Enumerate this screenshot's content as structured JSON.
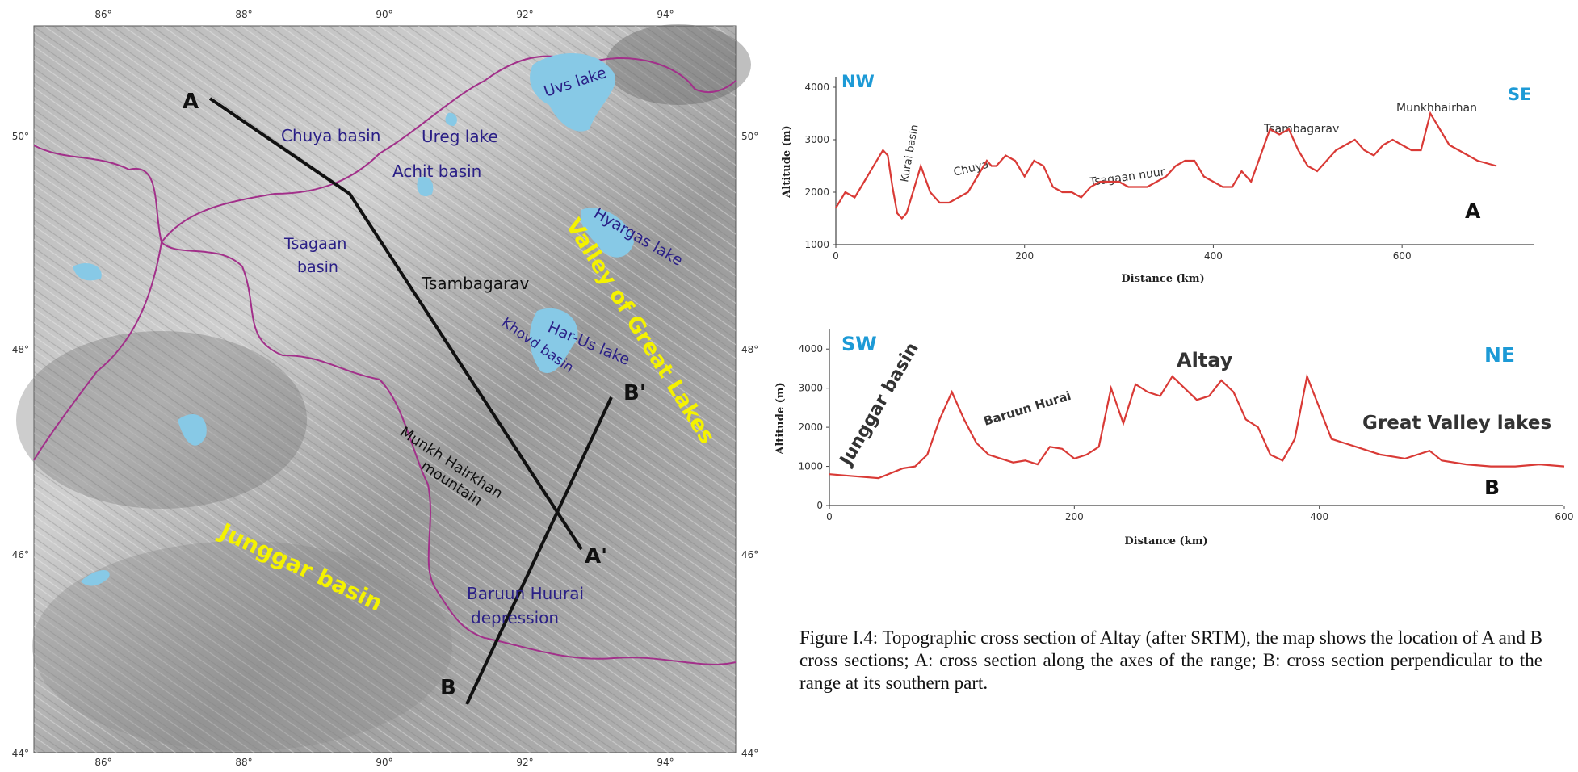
{
  "map": {
    "lon_ticks": [
      "86°",
      "88°",
      "90°",
      "92°",
      "94°"
    ],
    "lat_ticks": [
      "50°",
      "48°",
      "46°",
      "44°"
    ],
    "lakes": [
      {
        "name": "Uvs lake"
      },
      {
        "name": "Ureg lake"
      },
      {
        "name": "Hyargas lake"
      },
      {
        "name": "Har-Us lake"
      }
    ],
    "basins": [
      {
        "name": "Chuya basin"
      },
      {
        "name": "Achit basin"
      },
      {
        "name": "Khovd basin"
      }
    ],
    "tsagaan_basin": [
      "Tsagaan",
      "basin"
    ],
    "tsambagarav": "Tsambagarav",
    "munkh_hairkhan": [
      "Munkh Hairkhan",
      "mountain"
    ],
    "baruun_huurai": [
      "Baruun Huurai",
      "depression"
    ],
    "junggar_basin": "Junggar basin",
    "valley_great_lakes": "Valley of Great Lakes",
    "profile_points": {
      "a": "A",
      "a_prime": "A'",
      "b": "B",
      "b_prime": "B'"
    },
    "colors": {
      "lake": "#87c9e6",
      "border": "#a2308a",
      "profile_line": "#111111",
      "highlight": "#f4f200",
      "place": "#2a1f86"
    }
  },
  "profile_a": {
    "left_label": "NW",
    "right_label": "SE",
    "end_label": "A",
    "ylabel": "Altitude (m)",
    "xlabel": "Distance (km)",
    "yticks": [
      "1000",
      "2000",
      "3000",
      "4000"
    ],
    "xticks": [
      "0",
      "200",
      "400",
      "600"
    ],
    "annotations": [
      "Kurai basin",
      "Chuya",
      "Tsagaan nuur",
      "Tsambagarav",
      "Munkhhairhan"
    ]
  },
  "profile_b": {
    "left_label": "SW",
    "right_label": "NE",
    "end_label": "B",
    "ylabel": "Altitude (m)",
    "xlabel": "Distance (km)",
    "yticks": [
      "0",
      "1000",
      "2000",
      "3000",
      "4000"
    ],
    "xticks": [
      "0",
      "200",
      "400",
      "600"
    ],
    "annotations": [
      "Junggar basin",
      "Baruun Hurai",
      "Altay",
      "Great Valley lakes"
    ]
  },
  "chart_data": [
    {
      "type": "line",
      "xlabel": "Distance (km)",
      "ylabel": "Altitude (m)",
      "xlim": [
        0,
        700
      ],
      "ylim": [
        1000,
        4200
      ],
      "series": [
        {
          "x": [
            0,
            10,
            20,
            30,
            40,
            50,
            55,
            60,
            65,
            70,
            75,
            80,
            90,
            100,
            110,
            120,
            130,
            140,
            150,
            160,
            165,
            170,
            180,
            190,
            200,
            210,
            220,
            230,
            240,
            250,
            260,
            270,
            280,
            290,
            300,
            310,
            320,
            330,
            340,
            350,
            360,
            370,
            380,
            390,
            400,
            410,
            420,
            430,
            440,
            450,
            460,
            470,
            480,
            490,
            500,
            510,
            520,
            530,
            540,
            550,
            560,
            570,
            580,
            590,
            600,
            610,
            620,
            630,
            640,
            650,
            660,
            670,
            680,
            700
          ],
          "y": [
            1700,
            2000,
            1900,
            2200,
            2500,
            2800,
            2700,
            2100,
            1600,
            1500,
            1600,
            1900,
            2500,
            2000,
            1800,
            1800,
            1900,
            2000,
            2300,
            2600,
            2500,
            2500,
            2700,
            2600,
            2300,
            2600,
            2500,
            2100,
            2000,
            2000,
            1900,
            2100,
            2200,
            2200,
            2200,
            2100,
            2100,
            2100,
            2200,
            2300,
            2500,
            2600,
            2600,
            2300,
            2200,
            2100,
            2100,
            2400,
            2200,
            2700,
            3200,
            3100,
            3200,
            2800,
            2500,
            2400,
            2600,
            2800,
            2900,
            3000,
            2800,
            2700,
            2900,
            3000,
            2900,
            2800,
            2800,
            3500,
            3200,
            2900,
            2800,
            2700,
            2600,
            2500
          ]
        }
      ]
    },
    {
      "type": "line",
      "xlabel": "Distance (km)",
      "ylabel": "Altitude (m)",
      "xlim": [
        0,
        600
      ],
      "ylim": [
        0,
        4500
      ],
      "series": [
        {
          "x": [
            0,
            20,
            40,
            60,
            70,
            80,
            90,
            100,
            110,
            120,
            130,
            140,
            150,
            160,
            170,
            180,
            190,
            200,
            210,
            220,
            230,
            240,
            250,
            260,
            270,
            280,
            290,
            300,
            310,
            320,
            330,
            340,
            350,
            360,
            370,
            380,
            390,
            400,
            410,
            420,
            430,
            440,
            450,
            460,
            470,
            480,
            490,
            500,
            520,
            540,
            560,
            580,
            600
          ],
          "y": [
            800,
            750,
            700,
            950,
            1000,
            1300,
            2200,
            2900,
            2200,
            1600,
            1300,
            1200,
            1100,
            1150,
            1050,
            1500,
            1450,
            1200,
            1300,
            1500,
            3000,
            2100,
            3100,
            2900,
            2800,
            3300,
            3000,
            2700,
            2800,
            3200,
            2900,
            2200,
            2000,
            1300,
            1150,
            1700,
            3300,
            2500,
            1700,
            1600,
            1500,
            1400,
            1300,
            1250,
            1200,
            1300,
            1400,
            1150,
            1050,
            1000,
            1000,
            1050,
            1000
          ]
        }
      ]
    }
  ]
}
